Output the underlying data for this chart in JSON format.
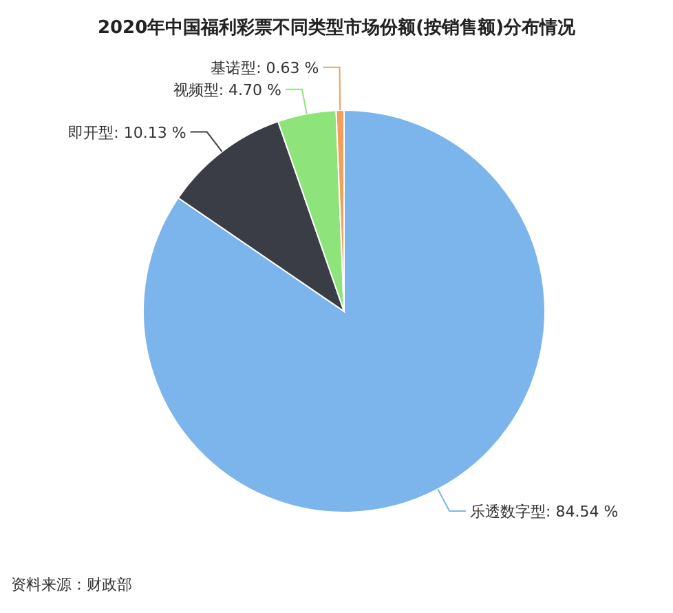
{
  "chart_data": {
    "type": "pie",
    "title": "2020年中国福利彩票不同类型市场份额(按销售额)分布情况",
    "categories": [
      "乐透数字型",
      "即开型",
      "视频型",
      "基诺型"
    ],
    "values": [
      84.54,
      10.13,
      4.7,
      0.63
    ],
    "value_labels": [
      "84.54 %",
      "10.13 %",
      "4.70 %",
      "0.63 %"
    ],
    "colors": [
      "#7cb5ec",
      "#3a3d45",
      "#8ee37a",
      "#f0a05a"
    ],
    "legend": false,
    "annotations": [
      "资料来源：财政部"
    ]
  }
}
